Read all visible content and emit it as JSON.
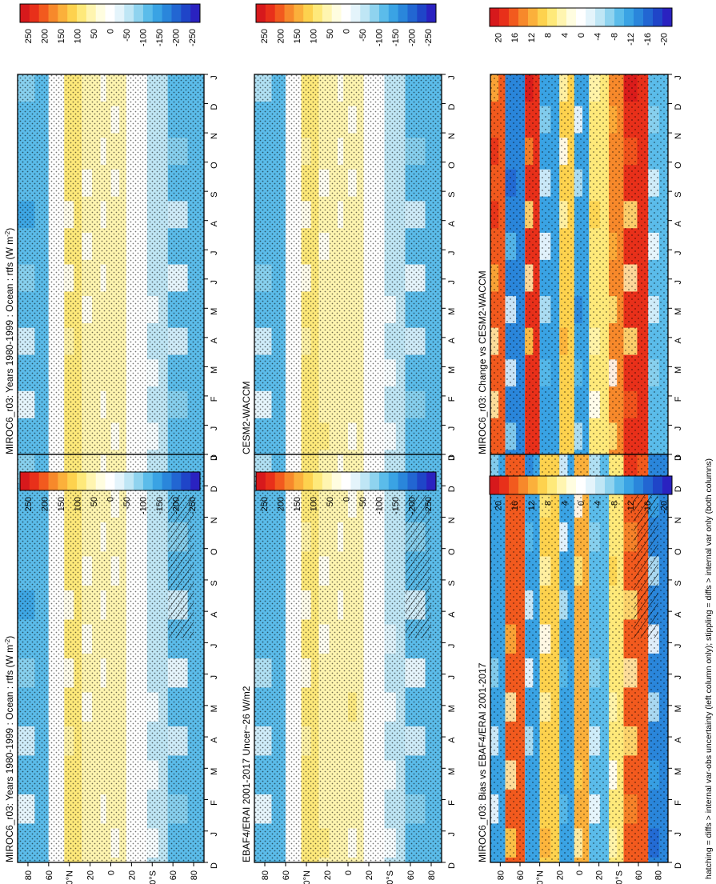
{
  "figure": {
    "footer_caption": "hatching = diffs > internal var-obs uncertainty (left column only); stippling = diffs > internal var only (both columns)"
  },
  "axis_labels": {
    "months": [
      "D",
      "J",
      "F",
      "M",
      "A",
      "M",
      "J",
      "J",
      "A",
      "S",
      "O",
      "N",
      "D",
      "J"
    ],
    "latitudes": [
      "80",
      "60",
      "40°N",
      "20",
      "0",
      "20",
      "40°S",
      "60",
      "80"
    ]
  },
  "colorbars": [
    {
      "id": "cb-top-left",
      "ticks": [
        "250",
        "200",
        "150",
        "100",
        "50",
        "0",
        "-50",
        "-100",
        "-150",
        "-200",
        "-250"
      ]
    },
    {
      "id": "cb-mid-left",
      "ticks": [
        "250",
        "200",
        "150",
        "100",
        "50",
        "0",
        "-50",
        "-100",
        "-150",
        "-200",
        "-250"
      ]
    },
    {
      "id": "cb-bot-left",
      "ticks": [
        "20",
        "16",
        "12",
        "8",
        "4",
        "0",
        "-4",
        "-8",
        "-12",
        "-16",
        "-20"
      ]
    },
    {
      "id": "cb-top-right",
      "ticks": [
        "250",
        "200",
        "150",
        "100",
        "50",
        "0",
        "-50",
        "-100",
        "-150",
        "-200",
        "-250"
      ]
    },
    {
      "id": "cb-mid-right",
      "ticks": [
        "250",
        "200",
        "150",
        "100",
        "50",
        "0",
        "-50",
        "-100",
        "-150",
        "-200",
        "-250"
      ]
    },
    {
      "id": "cb-bot-right",
      "ticks": [
        "20",
        "16",
        "12",
        "8",
        "4",
        "0",
        "-4",
        "-8",
        "-12",
        "-16",
        "-20"
      ]
    }
  ],
  "colors": {
    "warm": [
      "#d7191c",
      "#e8301a",
      "#f25a1e",
      "#f7892b",
      "#fbb03b",
      "#fdd24e",
      "#fee97a",
      "#fff5b0",
      "#fffde0",
      "#ffffff"
    ],
    "cool": [
      "#ffffff",
      "#e4f4fb",
      "#bfe6f5",
      "#8fd3ef",
      "#5bbcea",
      "#3aa3e4",
      "#2a86db",
      "#2266d2",
      "#1f45c8",
      "#2a22c0"
    ]
  },
  "chart_data": [
    {
      "id": "panel-top-left",
      "type": "heatmap",
      "title": "MIROC6_r03: Years 1980-1999 : Ocean : rtfs (W m",
      "title_sup": "-2",
      "title_end": ")",
      "x": "month (Dec–Jan)",
      "y": "latitude (80N–80S)",
      "zlim": [
        -250,
        250
      ],
      "bands": [
        {
          "lat": [
            90,
            60
          ],
          "value": -120
        },
        {
          "lat": [
            60,
            45
          ],
          "value": 0
        },
        {
          "lat": [
            45,
            28
          ],
          "value": 70
        },
        {
          "lat": [
            28,
            10
          ],
          "value": 40
        },
        {
          "lat": [
            10,
            0
          ],
          "value": 20
        },
        {
          "lat": [
            0,
            -15
          ],
          "value": 40
        },
        {
          "lat": [
            -15,
            -35
          ],
          "value": 10
        },
        {
          "lat": [
            -35,
            -55
          ],
          "value": -60
        },
        {
          "lat": [
            -55,
            -90
          ],
          "value": -110
        }
      ],
      "stipple": "dense",
      "hatching": true
    },
    {
      "id": "panel-mid-left",
      "type": "heatmap",
      "title": "EBAF4/ERAI 2001-2017 Uncer~26 W/m2",
      "x": "month (Dec–Jan)",
      "y": "latitude (80N–80S)",
      "zlim": [
        -250,
        250
      ],
      "bands": [
        {
          "lat": [
            90,
            60
          ],
          "value": -100
        },
        {
          "lat": [
            60,
            45
          ],
          "value": 0
        },
        {
          "lat": [
            45,
            28
          ],
          "value": 60
        },
        {
          "lat": [
            28,
            10
          ],
          "value": 45
        },
        {
          "lat": [
            10,
            0
          ],
          "value": 25
        },
        {
          "lat": [
            0,
            -15
          ],
          "value": 45
        },
        {
          "lat": [
            -15,
            -35
          ],
          "value": 15
        },
        {
          "lat": [
            -35,
            -55
          ],
          "value": -50
        },
        {
          "lat": [
            -55,
            -90
          ],
          "value": -100
        }
      ],
      "stipple": "dense",
      "hatching": true
    },
    {
      "id": "panel-bot-left",
      "type": "heatmap",
      "title": "MIROC6_r03: Bias vs EBAF4/ERAI 2001-2017",
      "x": "month (Dec–Jan)",
      "y": "latitude (80N–80S)",
      "zlim": [
        -20,
        20
      ],
      "bands": [
        {
          "lat": [
            90,
            75
          ],
          "value": -10
        },
        {
          "lat": [
            75,
            55
          ],
          "value": 14
        },
        {
          "lat": [
            55,
            40
          ],
          "value": -12
        },
        {
          "lat": [
            40,
            20
          ],
          "value": 8
        },
        {
          "lat": [
            20,
            5
          ],
          "value": -10
        },
        {
          "lat": [
            5,
            -10
          ],
          "value": 10
        },
        {
          "lat": [
            -10,
            -30
          ],
          "value": -8
        },
        {
          "lat": [
            -30,
            -45
          ],
          "value": 6
        },
        {
          "lat": [
            -45,
            -70
          ],
          "value": 16
        },
        {
          "lat": [
            -70,
            -90
          ],
          "value": -14
        }
      ],
      "stipple": "medium",
      "hatching": true
    },
    {
      "id": "panel-top-right",
      "type": "heatmap",
      "title": "MIROC6_r03: Years 1980-1999 : Ocean : rtfs (W m",
      "title_sup": "-2",
      "title_end": ")",
      "x": "month (Dec–Jan)",
      "y": "latitude (80N–80S)",
      "zlim": [
        -250,
        250
      ],
      "bands": [
        {
          "lat": [
            90,
            60
          ],
          "value": -120
        },
        {
          "lat": [
            60,
            45
          ],
          "value": 0
        },
        {
          "lat": [
            45,
            28
          ],
          "value": 70
        },
        {
          "lat": [
            28,
            10
          ],
          "value": 40
        },
        {
          "lat": [
            10,
            0
          ],
          "value": 20
        },
        {
          "lat": [
            0,
            -15
          ],
          "value": 40
        },
        {
          "lat": [
            -15,
            -35
          ],
          "value": 10
        },
        {
          "lat": [
            -35,
            -55
          ],
          "value": -60
        },
        {
          "lat": [
            -55,
            -90
          ],
          "value": -110
        }
      ],
      "stipple": "dense",
      "hatching": false
    },
    {
      "id": "panel-mid-right",
      "type": "heatmap",
      "title": "CESM2-WACCM",
      "x": "month (Dec–Jan)",
      "y": "latitude (80N–80S)",
      "zlim": [
        -250,
        250
      ],
      "bands": [
        {
          "lat": [
            90,
            60
          ],
          "value": -110
        },
        {
          "lat": [
            60,
            45
          ],
          "value": 0
        },
        {
          "lat": [
            45,
            28
          ],
          "value": 65
        },
        {
          "lat": [
            28,
            10
          ],
          "value": 45
        },
        {
          "lat": [
            10,
            0
          ],
          "value": 25
        },
        {
          "lat": [
            0,
            -15
          ],
          "value": 40
        },
        {
          "lat": [
            -15,
            -35
          ],
          "value": 10
        },
        {
          "lat": [
            -35,
            -55
          ],
          "value": -55
        },
        {
          "lat": [
            -55,
            -90
          ],
          "value": -100
        }
      ],
      "stipple": "dense",
      "hatching": false
    },
    {
      "id": "panel-bot-right",
      "type": "heatmap",
      "title": "MIROC6_r03: Change vs CESM2-WACCM",
      "x": "month (Dec–Jan)",
      "y": "latitude (80N–80S)",
      "zlim": [
        -20,
        20
      ],
      "bands": [
        {
          "lat": [
            90,
            75
          ],
          "value": 16
        },
        {
          "lat": [
            75,
            55
          ],
          "value": -14
        },
        {
          "lat": [
            55,
            40
          ],
          "value": 18
        },
        {
          "lat": [
            40,
            20
          ],
          "value": -10
        },
        {
          "lat": [
            20,
            5
          ],
          "value": 8
        },
        {
          "lat": [
            5,
            -10
          ],
          "value": -12
        },
        {
          "lat": [
            -10,
            -30
          ],
          "value": 6
        },
        {
          "lat": [
            -30,
            -45
          ],
          "value": 12
        },
        {
          "lat": [
            -45,
            -70
          ],
          "value": 18
        },
        {
          "lat": [
            -70,
            -90
          ],
          "value": -8
        }
      ],
      "stipple": "medium",
      "hatching": false
    }
  ]
}
